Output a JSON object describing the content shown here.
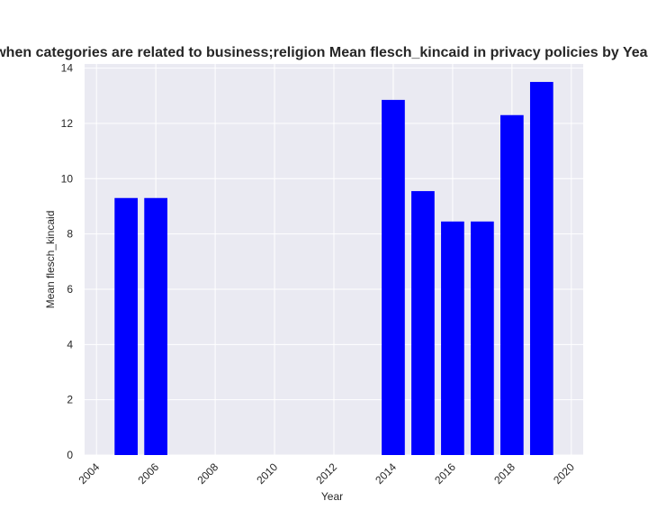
{
  "chart_data": {
    "type": "bar",
    "title": "when categories are related to business;religion Mean flesch_kincaid in privacy policies by Year",
    "xlabel": "Year",
    "ylabel": "Mean flesch_kincaid",
    "x": [
      2005,
      2006,
      2014,
      2015,
      2016,
      2017,
      2018,
      2019
    ],
    "values": [
      9.3,
      9.3,
      12.85,
      9.55,
      8.45,
      8.45,
      12.3,
      13.5
    ],
    "xlim": [
      2003.6,
      2020.4
    ],
    "ylim": [
      0,
      14.15
    ],
    "xticks": [
      2004,
      2006,
      2008,
      2010,
      2012,
      2014,
      2016,
      2018,
      2020
    ],
    "yticks": [
      0,
      2,
      4,
      6,
      8,
      10,
      12,
      14
    ],
    "grid": true,
    "colors": {
      "bar": "#0000ff",
      "plot_background": "#eaeaf2",
      "grid": "#ffffff"
    }
  }
}
